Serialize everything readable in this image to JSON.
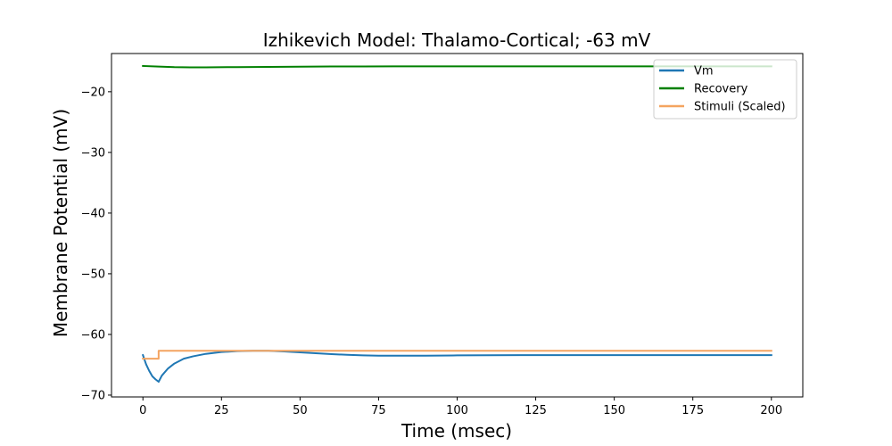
{
  "chart_data": {
    "type": "line",
    "title": "Izhikevich Model: Thalamo-Cortical; -63 mV",
    "xlabel": "Time (msec)",
    "ylabel": "Membrane Potential (mV)",
    "xlim": [
      -10,
      210
    ],
    "ylim": [
      -70.3,
      -13.7
    ],
    "xticks": [
      0,
      25,
      50,
      75,
      100,
      125,
      150,
      175,
      200
    ],
    "yticks": [
      -70,
      -60,
      -50,
      -40,
      -30,
      -20
    ],
    "xtick_labels": [
      "0",
      "25",
      "50",
      "75",
      "100",
      "125",
      "150",
      "175",
      "200"
    ],
    "ytick_labels": [
      "−70",
      "−60",
      "−50",
      "−40",
      "−30",
      "−20"
    ],
    "grid": false,
    "legend_position": "top-right",
    "series": [
      {
        "name": "Vm",
        "color": "#1f77b4",
        "x": [
          0,
          1,
          2,
          3,
          4,
          5,
          6,
          8,
          10,
          13,
          16,
          20,
          25,
          30,
          35,
          40,
          45,
          50,
          55,
          60,
          65,
          70,
          75,
          80,
          90,
          100,
          110,
          120,
          130,
          140,
          150,
          160,
          170,
          180,
          190,
          200
        ],
        "y": [
          -63.4,
          -64.9,
          -66.0,
          -66.9,
          -67.4,
          -67.8,
          -66.8,
          -65.6,
          -64.8,
          -64.0,
          -63.6,
          -63.2,
          -62.9,
          -62.75,
          -62.7,
          -62.7,
          -62.8,
          -62.95,
          -63.1,
          -63.25,
          -63.35,
          -63.45,
          -63.5,
          -63.5,
          -63.5,
          -63.45,
          -63.42,
          -63.4,
          -63.4,
          -63.4,
          -63.4,
          -63.4,
          -63.4,
          -63.4,
          -63.4,
          -63.4
        ]
      },
      {
        "name": "Recovery",
        "color": "#008000",
        "x": [
          0,
          5,
          10,
          15,
          20,
          30,
          40,
          50,
          60,
          70,
          80,
          100,
          125,
          150,
          175,
          200
        ],
        "y": [
          -15.75,
          -15.85,
          -15.95,
          -15.98,
          -15.97,
          -15.94,
          -15.9,
          -15.87,
          -15.84,
          -15.83,
          -15.82,
          -15.81,
          -15.81,
          -15.81,
          -15.81,
          -15.81
        ]
      },
      {
        "name": "Stimuli (Scaled)",
        "color": "#f4a460",
        "x": [
          0,
          5,
          5,
          200
        ],
        "y": [
          -64.0,
          -64.0,
          -62.7,
          -62.7
        ]
      }
    ]
  }
}
